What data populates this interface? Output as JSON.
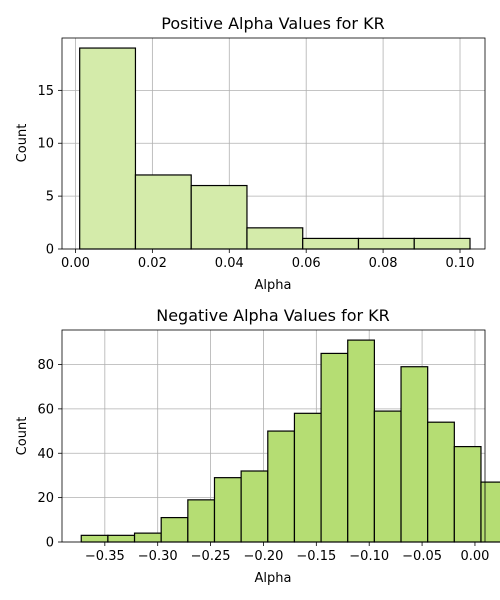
{
  "chart_data": [
    {
      "type": "bar",
      "title": "Positive Alpha Values for KR",
      "xlabel": "Alpha",
      "ylabel": "Count",
      "bar_color": "#d4ebaa",
      "xlim": [
        -0.0035,
        0.1065
      ],
      "ylim": [
        0,
        19.95
      ],
      "xticks": [
        0.0,
        0.02,
        0.04,
        0.06,
        0.08,
        0.1
      ],
      "xtick_labels": [
        "0.00",
        "0.02",
        "0.04",
        "0.06",
        "0.08",
        "0.10"
      ],
      "yticks": [
        0,
        5,
        10,
        15
      ],
      "ytick_labels": [
        "0",
        "5",
        "10",
        "15"
      ],
      "bins": [
        {
          "x0": 0.0011,
          "x1": 0.0156,
          "count": 19
        },
        {
          "x0": 0.0156,
          "x1": 0.0301,
          "count": 7
        },
        {
          "x0": 0.0301,
          "x1": 0.0446,
          "count": 6
        },
        {
          "x0": 0.0446,
          "x1": 0.0591,
          "count": 2
        },
        {
          "x0": 0.0591,
          "x1": 0.0736,
          "count": 1
        },
        {
          "x0": 0.0736,
          "x1": 0.0881,
          "count": 1
        },
        {
          "x0": 0.0881,
          "x1": 0.1026,
          "count": 1
        }
      ],
      "grid": true
    },
    {
      "type": "bar",
      "title": "Negative Alpha Values for KR",
      "xlabel": "Alpha",
      "ylabel": "Count",
      "bar_color": "#b5dd73",
      "xlim": [
        -0.3905,
        0.0095
      ],
      "ylim": [
        0,
        95.55
      ],
      "xticks": [
        -0.35,
        -0.3,
        -0.25,
        -0.2,
        -0.15,
        -0.1,
        -0.05,
        0.0
      ],
      "xtick_labels": [
        "−0.35",
        "−0.30",
        "−0.25",
        "−0.20",
        "−0.15",
        "−0.10",
        "−0.05",
        "0.00"
      ],
      "yticks": [
        0,
        20,
        40,
        60,
        80
      ],
      "ytick_labels": [
        "0",
        "20",
        "40",
        "60",
        "80"
      ],
      "bins": [
        {
          "x0": -0.3723,
          "x1": -0.3471,
          "count": 3
        },
        {
          "x0": -0.3471,
          "x1": -0.3219,
          "count": 3
        },
        {
          "x0": -0.3219,
          "x1": -0.2967,
          "count": 4
        },
        {
          "x0": -0.2967,
          "x1": -0.2715,
          "count": 11
        },
        {
          "x0": -0.2715,
          "x1": -0.2463,
          "count": 19
        },
        {
          "x0": -0.2463,
          "x1": -0.2211,
          "count": 29
        },
        {
          "x0": -0.2211,
          "x1": -0.1959,
          "count": 32
        },
        {
          "x0": -0.1959,
          "x1": -0.1707,
          "count": 50
        },
        {
          "x0": -0.1707,
          "x1": -0.1455,
          "count": 58
        },
        {
          "x0": -0.1455,
          "x1": -0.1203,
          "count": 85
        },
        {
          "x0": -0.1203,
          "x1": -0.0951,
          "count": 91
        },
        {
          "x0": -0.0951,
          "x1": -0.0699,
          "count": 59
        },
        {
          "x0": -0.0699,
          "x1": -0.0447,
          "count": 79
        },
        {
          "x0": -0.0447,
          "x1": -0.0195,
          "count": 54
        },
        {
          "x0": -0.0195,
          "x1": 0.0057,
          "count": 43
        },
        {
          "x0": 0.0057,
          "x1": 0.0309,
          "count": 27
        }
      ],
      "grid": true
    }
  ]
}
